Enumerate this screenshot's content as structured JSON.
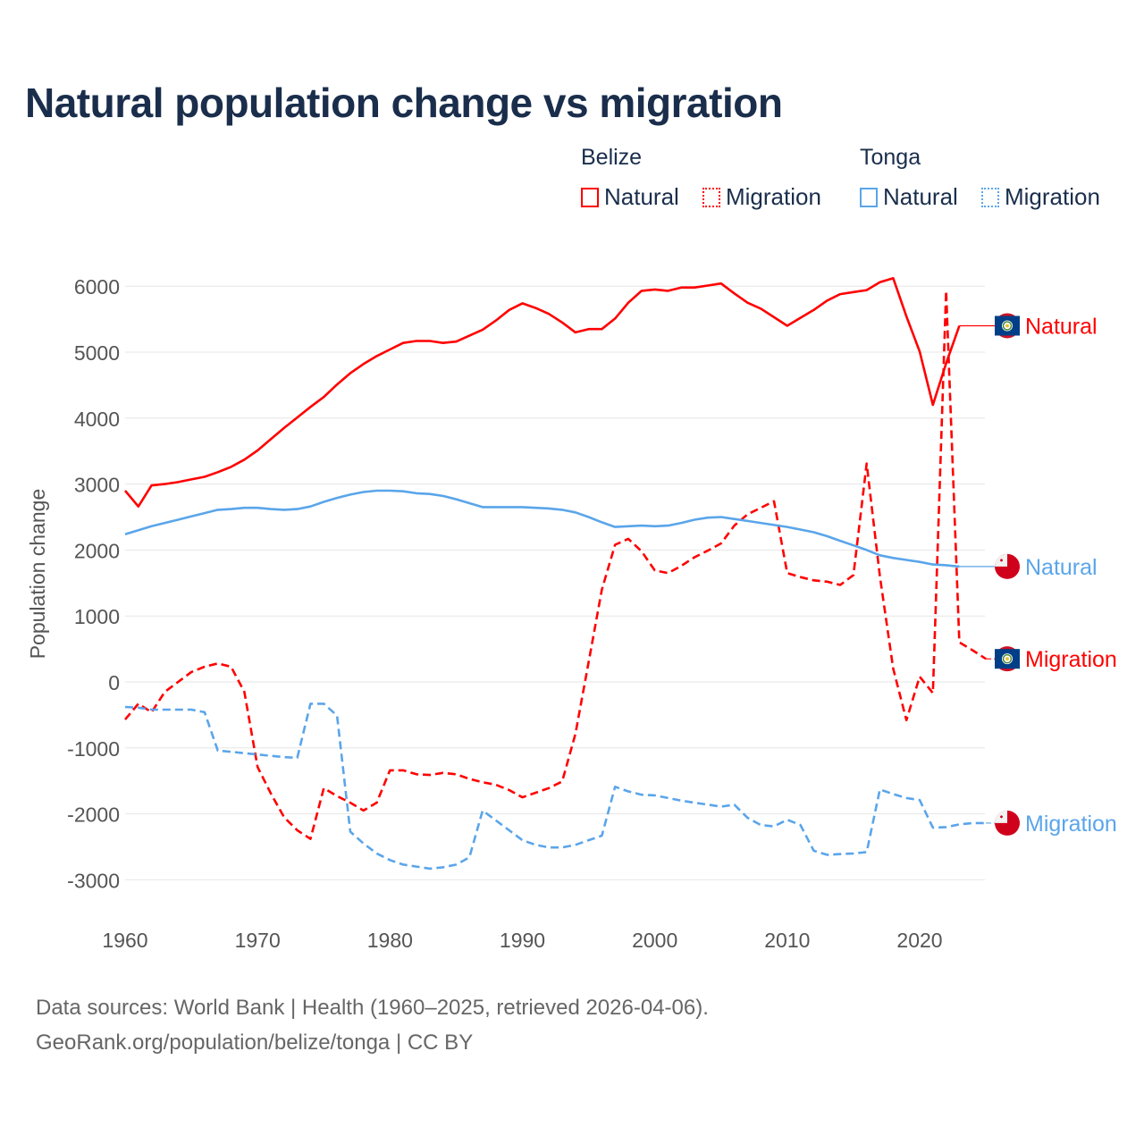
{
  "chart_data": {
    "type": "line",
    "title": "Natural population change vs migration",
    "ylabel": "Population change",
    "xlabel": "",
    "xlim": [
      1960,
      2025
    ],
    "ylim": [
      -3000,
      6000
    ],
    "x_ticks": [
      "1960",
      "1970",
      "1980",
      "1990",
      "2000",
      "2010",
      "2020"
    ],
    "y_ticks": [
      "6000",
      "5000",
      "4000",
      "3000",
      "2000",
      "1000",
      "0",
      "-1000",
      "-2000",
      "-3000"
    ],
    "grid": true,
    "legend": {
      "placement": "top-right",
      "groups": [
        {
          "name": "Belize",
          "items": [
            "Natural",
            "Migration"
          ]
        },
        {
          "name": "Tonga",
          "items": [
            "Natural",
            "Migration"
          ]
        }
      ]
    },
    "x": [
      1960,
      1961,
      1962,
      1963,
      1964,
      1965,
      1966,
      1967,
      1968,
      1969,
      1970,
      1971,
      1972,
      1973,
      1974,
      1975,
      1976,
      1977,
      1978,
      1979,
      1980,
      1981,
      1982,
      1983,
      1984,
      1985,
      1986,
      1987,
      1988,
      1989,
      1990,
      1991,
      1992,
      1993,
      1994,
      1995,
      1996,
      1997,
      1998,
      1999,
      2000,
      2001,
      2002,
      2003,
      2004,
      2005,
      2006,
      2007,
      2008,
      2009,
      2010,
      2011,
      2012,
      2013,
      2014,
      2015,
      2016,
      2017,
      2018,
      2019,
      2020,
      2021,
      2022,
      2023,
      2024,
      2025
    ],
    "series": [
      {
        "name": "Belize Natural",
        "country": "Belize",
        "kind": "Natural",
        "color": "#ff0000",
        "dash": "solid",
        "values": [
          2900,
          2660,
          2980,
          3000,
          3030,
          3070,
          3110,
          3180,
          3260,
          3370,
          3510,
          3680,
          3850,
          4010,
          4170,
          4320,
          4510,
          4680,
          4820,
          4940,
          5040,
          5140,
          5170,
          5170,
          5140,
          5160,
          5250,
          5340,
          5480,
          5640,
          5740,
          5670,
          5580,
          5450,
          5300,
          5350,
          5350,
          5510,
          5750,
          5930,
          5950,
          5930,
          5980,
          5980,
          6010,
          6040,
          5890,
          5750,
          5660,
          5530,
          5400,
          5520,
          5640,
          5780,
          5880,
          5910,
          5940,
          6060,
          6120,
          5540,
          5010,
          4200,
          4830,
          5400,
          5400,
          5400
        ]
      },
      {
        "name": "Belize Migration",
        "country": "Belize",
        "kind": "Migration",
        "color": "#ff0000",
        "dash": "dashed",
        "values": [
          -570,
          -330,
          -460,
          -150,
          0,
          150,
          230,
          280,
          230,
          -150,
          -1290,
          -1690,
          -2050,
          -2250,
          -2380,
          -1610,
          -1730,
          -1830,
          -1950,
          -1830,
          -1340,
          -1340,
          -1400,
          -1410,
          -1380,
          -1400,
          -1470,
          -1520,
          -1560,
          -1640,
          -1750,
          -1680,
          -1610,
          -1510,
          -790,
          300,
          1400,
          2080,
          2170,
          1980,
          1690,
          1650,
          1760,
          1890,
          1990,
          2100,
          2370,
          2540,
          2640,
          2740,
          1650,
          1590,
          1540,
          1520,
          1470,
          1620,
          3310,
          1600,
          200,
          -580,
          80,
          -170,
          5930,
          600,
          480,
          350
        ]
      },
      {
        "name": "Tonga Natural",
        "country": "Tonga",
        "kind": "Natural",
        "color": "#5aa5ea",
        "dash": "solid",
        "values": [
          2240,
          2300,
          2360,
          2410,
          2460,
          2510,
          2560,
          2610,
          2620,
          2640,
          2640,
          2620,
          2610,
          2620,
          2660,
          2730,
          2790,
          2840,
          2880,
          2900,
          2900,
          2890,
          2860,
          2850,
          2820,
          2770,
          2710,
          2650,
          2650,
          2650,
          2650,
          2640,
          2630,
          2610,
          2570,
          2500,
          2420,
          2350,
          2360,
          2370,
          2360,
          2370,
          2410,
          2460,
          2490,
          2500,
          2470,
          2440,
          2410,
          2380,
          2350,
          2310,
          2270,
          2210,
          2140,
          2070,
          2000,
          1920,
          1880,
          1850,
          1820,
          1780,
          1770,
          1750,
          1750,
          1750
        ]
      },
      {
        "name": "Tonga Migration",
        "country": "Tonga",
        "kind": "Migration",
        "color": "#5aa5ea",
        "dash": "dashed",
        "values": [
          -380,
          -390,
          -420,
          -420,
          -420,
          -420,
          -460,
          -1040,
          -1060,
          -1080,
          -1100,
          -1120,
          -1140,
          -1150,
          -330,
          -330,
          -510,
          -2270,
          -2450,
          -2600,
          -2700,
          -2770,
          -2800,
          -2830,
          -2810,
          -2770,
          -2660,
          -1950,
          -2100,
          -2250,
          -2400,
          -2470,
          -2510,
          -2510,
          -2470,
          -2400,
          -2330,
          -1590,
          -1660,
          -1710,
          -1720,
          -1760,
          -1800,
          -1830,
          -1860,
          -1890,
          -1860,
          -2060,
          -2170,
          -2190,
          -2090,
          -2170,
          -2560,
          -2620,
          -2610,
          -2600,
          -2580,
          -1630,
          -1700,
          -1760,
          -1790,
          -2210,
          -2200,
          -2160,
          -2140,
          -2140
        ]
      }
    ],
    "end_labels": [
      "Natural",
      "Migration",
      "Natural",
      "Migration"
    ]
  },
  "legend_labels": {
    "belize": "Belize",
    "tonga": "Tonga",
    "natural": "Natural",
    "migration": "Migration"
  },
  "source": {
    "line1": "Data sources: World Bank | Health (1960–2025, retrieved 2026-04-06).",
    "line2": "GeoRank.org/population/belize/tonga | CC BY"
  },
  "colors": {
    "belize": "#ff0000",
    "tonga": "#5aa5ea",
    "title": "#1a2e4c",
    "grid": "#e6e6e6"
  }
}
